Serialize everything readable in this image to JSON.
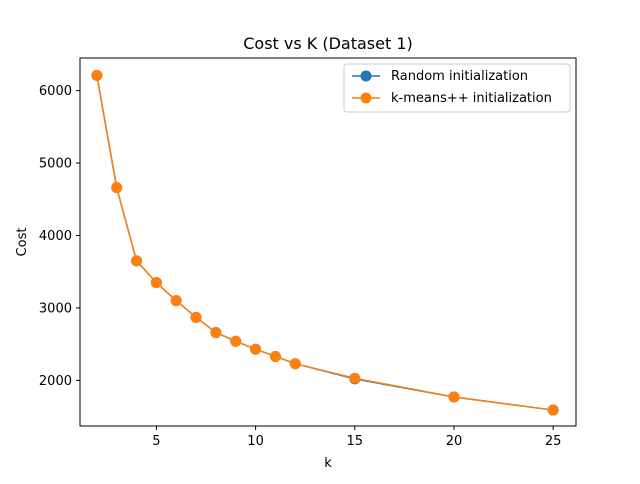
{
  "chart_data": {
    "type": "line",
    "title": "Cost vs K (Dataset 1)",
    "xlabel": "k",
    "ylabel": "Cost",
    "x": [
      2,
      3,
      4,
      5,
      6,
      7,
      8,
      9,
      10,
      11,
      12,
      15,
      20,
      25
    ],
    "xlim": [
      1.15,
      26.15
    ],
    "ylim": [
      1370,
      6450
    ],
    "xticks": [
      5,
      10,
      15,
      20,
      25
    ],
    "yticks": [
      2000,
      3000,
      4000,
      5000,
      6000
    ],
    "grid": false,
    "legend_position": "top-right",
    "series": [
      {
        "name": "Random initialization",
        "color": "#1f77b4",
        "values": [
          6210,
          4660,
          3650,
          3350,
          3100,
          2870,
          2660,
          2540,
          2430,
          2330,
          2230,
          2020,
          1770,
          1590
        ]
      },
      {
        "name": "k-means++ initialization",
        "color": "#ff7f0e",
        "values": [
          6210,
          4660,
          3650,
          3350,
          3100,
          2870,
          2660,
          2540,
          2430,
          2330,
          2230,
          2030,
          1770,
          1590
        ]
      }
    ]
  }
}
